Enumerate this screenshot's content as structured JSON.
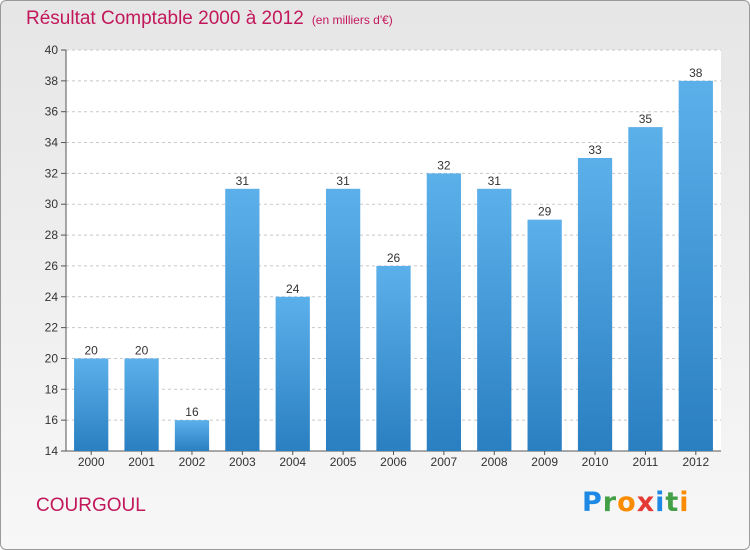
{
  "chart_data": {
    "type": "bar",
    "title": "Résultat Comptable 2000 à 2012",
    "subtitle": "(en milliers d'€)",
    "categories": [
      "2000",
      "2001",
      "2002",
      "2003",
      "2004",
      "2005",
      "2006",
      "2007",
      "2008",
      "2009",
      "2010",
      "2011",
      "2012"
    ],
    "values": [
      20,
      20,
      16,
      31,
      24,
      31,
      26,
      32,
      31,
      29,
      33,
      35,
      38
    ],
    "ylim": [
      14,
      40
    ],
    "yticks": [
      14,
      16,
      18,
      20,
      22,
      24,
      26,
      28,
      30,
      32,
      34,
      36,
      38,
      40
    ],
    "grid": true,
    "bar_color": "#3d95d6"
  },
  "footer": {
    "commune": "COURGOUL",
    "logo": "Proxiti"
  },
  "colors": {
    "title": "#c2185b",
    "accent_blue": "#1e88e5"
  }
}
